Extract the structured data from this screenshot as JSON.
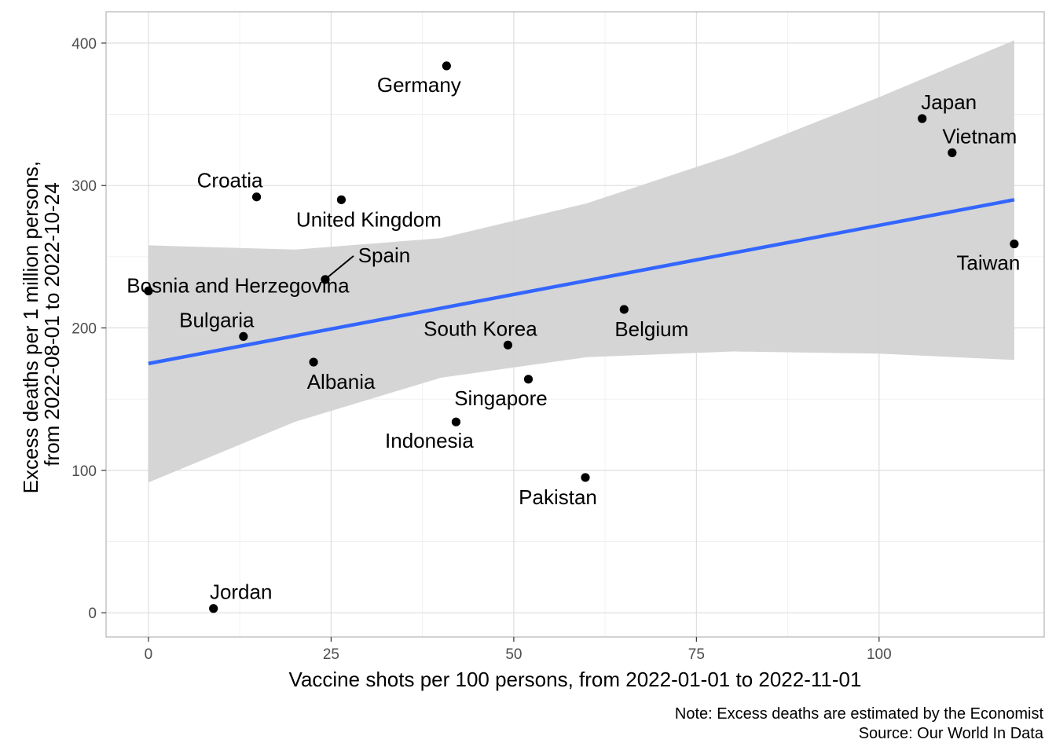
{
  "chart_data": {
    "type": "scatter",
    "xlabel": "Vaccine shots per 100 persons, from 2022-01-01 to 2022-11-01",
    "ylabel_lines": [
      "Excess deaths per 1 million persons,",
      "from 2022-08-01 to 2022-10-24"
    ],
    "caption_lines": [
      "Note: Excess deaths are estimated by the Economist",
      "Source: Our World In Data"
    ],
    "xlim": [
      -5.8,
      122.6
    ],
    "ylim": [
      -17,
      422
    ],
    "x_ticks": [
      0,
      25,
      50,
      75,
      100
    ],
    "y_ticks": [
      0,
      100,
      200,
      300,
      400
    ],
    "grid": true,
    "points": [
      {
        "label": "Germany",
        "x": 40.8,
        "y": 384
      },
      {
        "label": "Japan",
        "x": 105.9,
        "y": 347
      },
      {
        "label": "Vietnam",
        "x": 110.0,
        "y": 323
      },
      {
        "label": "Croatia",
        "x": 14.8,
        "y": 292
      },
      {
        "label": "United Kingdom",
        "x": 26.4,
        "y": 290
      },
      {
        "label": "Taiwan",
        "x": 118.5,
        "y": 259
      },
      {
        "label": "Spain",
        "x": 24.2,
        "y": 234
      },
      {
        "label": "Bosnia and Herzegovina",
        "x": 0.0,
        "y": 226
      },
      {
        "label": "Belgium",
        "x": 65.1,
        "y": 213
      },
      {
        "label": "Bulgaria",
        "x": 13.0,
        "y": 194
      },
      {
        "label": "South Korea",
        "x": 49.2,
        "y": 188
      },
      {
        "label": "Albania",
        "x": 22.6,
        "y": 176
      },
      {
        "label": "Singapore",
        "x": 52.0,
        "y": 164
      },
      {
        "label": "Indonesia",
        "x": 42.1,
        "y": 134
      },
      {
        "label": "Pakistan",
        "x": 59.8,
        "y": 95
      },
      {
        "label": "Jordan",
        "x": 8.9,
        "y": 3
      }
    ],
    "fit": {
      "method": "linear",
      "line_color": "#3366ff",
      "band_color": "#d3d3d3",
      "x": [
        0,
        20,
        40,
        60,
        80,
        100,
        118.5
      ],
      "y": [
        175,
        194.5,
        214,
        233.5,
        252.5,
        272,
        290
      ],
      "lower": [
        91.5,
        134,
        165,
        179.5,
        183.5,
        182,
        177.5
      ],
      "upper": [
        258,
        255,
        263,
        287.5,
        321.5,
        362,
        402
      ]
    }
  }
}
